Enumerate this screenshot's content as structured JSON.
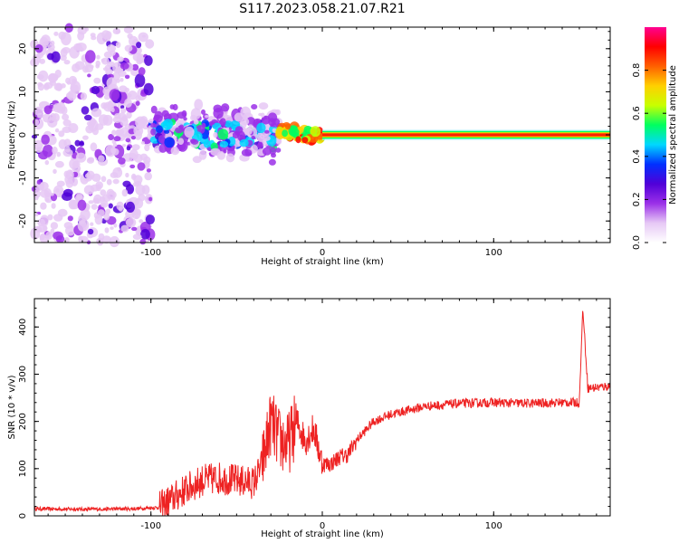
{
  "figure": {
    "title": "S117.2023.058.21.07.R21"
  },
  "chart_data": [
    {
      "type": "heatmap",
      "xlabel": "Height of straight line (km)",
      "ylabel": "Frequency (Hz)",
      "xlim": [
        -168,
        168
      ],
      "ylim": [
        -25,
        25
      ],
      "xticks": [
        -100,
        0,
        100
      ],
      "yticks": [
        -20,
        -10,
        0,
        10,
        20
      ],
      "colorbar": {
        "label": "Normalized spectral amplitude",
        "range": [
          0,
          1
        ],
        "ticks": [
          "0.0",
          "0.2",
          "0.4",
          "0.6",
          "0.8"
        ],
        "colors": [
          "#ffffff",
          "#e6c8f5",
          "#9b30e8",
          "#5000d8",
          "#0030ff",
          "#00d8ff",
          "#00ff60",
          "#c8ff00",
          "#ffd000",
          "#ff6000",
          "#ff0000",
          "#ff0090"
        ]
      },
      "regions": [
        {
          "x_range": [
            -168,
            -100
          ],
          "freq_range": [
            -25,
            25
          ],
          "amplitude": 0.05,
          "pattern": "scattered speckle"
        },
        {
          "x_range": [
            -100,
            -25
          ],
          "freq_range": [
            -8,
            10
          ],
          "amplitude": 0.2,
          "pattern": "scattered blobs around 0 Hz"
        },
        {
          "x_range": [
            -25,
            0
          ],
          "freq_range": [
            -2,
            3
          ],
          "amplitude": 0.8,
          "pattern": "narrow line near 0 Hz"
        },
        {
          "x_range": [
            0,
            168
          ],
          "freq_range": [
            -1,
            1
          ],
          "amplitude": 0.9,
          "pattern": "steady line at 0 Hz"
        }
      ]
    },
    {
      "type": "line",
      "xlabel": "Height of straight line (km)",
      "ylabel": "SNR (10 * v/v)",
      "xlim": [
        -168,
        168
      ],
      "ylim": [
        0,
        460
      ],
      "xticks": [
        -100,
        0,
        100
      ],
      "yticks": [
        0,
        100,
        200,
        300,
        400
      ],
      "color": "#ee2222",
      "x": [
        -168,
        -140,
        -110,
        -95,
        -90,
        -80,
        -70,
        -60,
        -50,
        -40,
        -35,
        -30,
        -25,
        -20,
        -15,
        -10,
        -5,
        0,
        5,
        10,
        15,
        20,
        30,
        40,
        60,
        80,
        100,
        120,
        140,
        150,
        152,
        155,
        168
      ],
      "y": [
        15,
        14,
        15,
        18,
        30,
        55,
        75,
        80,
        75,
        70,
        110,
        200,
        160,
        150,
        200,
        160,
        185,
        110,
        110,
        125,
        130,
        160,
        200,
        215,
        232,
        238,
        240,
        238,
        240,
        240,
        440,
        270,
        275
      ]
    }
  ]
}
